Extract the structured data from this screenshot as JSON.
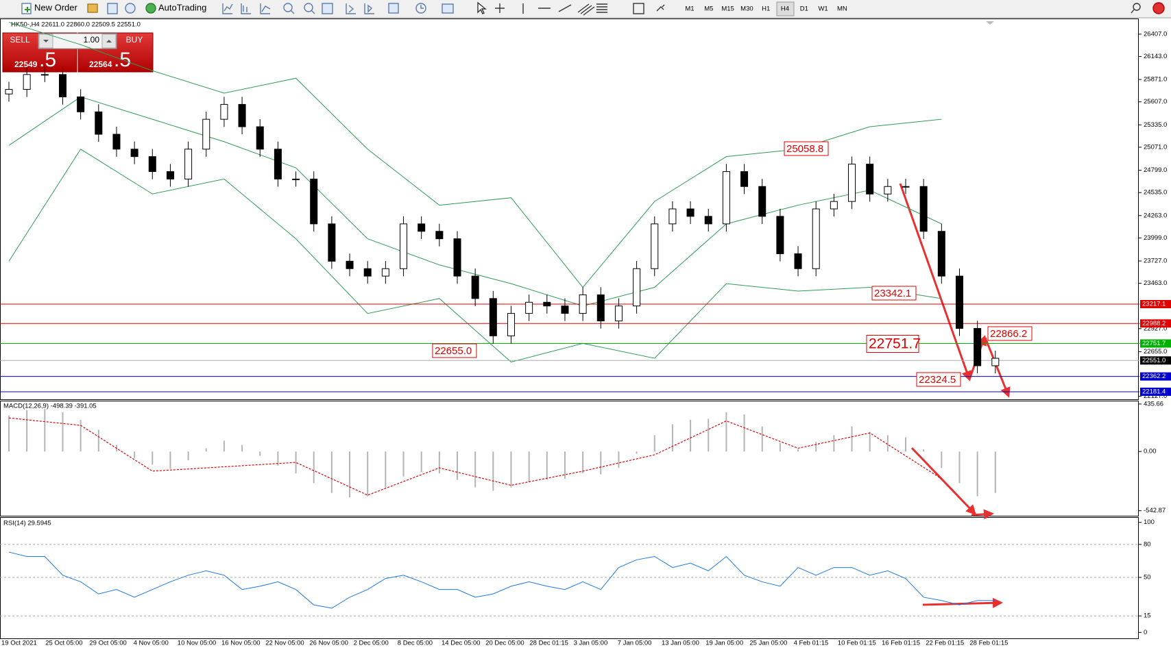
{
  "toolbar": {
    "new_order": "New Order",
    "autotrading": "AutoTrading",
    "timeframes": [
      "M1",
      "M5",
      "M15",
      "M30",
      "H1",
      "H4",
      "D1",
      "W1",
      "MN"
    ],
    "active": "H4"
  },
  "header": "HK50-,H4  22611.0 22860.0 22509.5 22551.0",
  "trade_panel": {
    "sell": "SELL",
    "buy": "BUY",
    "lot": "1.00",
    "sell_main": "22549",
    "sell_pips": ".5",
    "buy_main": "22564",
    "buy_pips": ".5"
  },
  "time_axis_labels": [
    "19 Oct 2021",
    "25 Oct 05:00",
    "29 Oct 05:00",
    "4 Nov 05:00",
    "10 Nov 05:00",
    "16 Nov 05:00",
    "22 Nov 05:00",
    "26 Nov 05:00",
    "2 Dec 05:00",
    "8 Dec 05:00",
    "14 Dec 05:00",
    "20 Dec 05:00",
    "28 Dec 01:15",
    "3 Jan 05:00",
    "7 Jan 05:00",
    "13 Jan 05:00",
    "19 Jan 05:00",
    "25 Jan 05:00",
    "4 Feb 01:15",
    "10 Feb 01:15",
    "16 Feb 01:15",
    "22 Feb 01:15",
    "28 Feb 01:15"
  ],
  "chart_data": [
    {
      "type": "candlestick",
      "ylim": [
        22092,
        26592
      ],
      "yticks": [
        {
          "value": 26407,
          "label": "26407.0"
        },
        {
          "value": 26143,
          "label": "26143.0"
        },
        {
          "value": 25871,
          "label": "25871.0"
        },
        {
          "value": 25607,
          "label": "25607.0"
        },
        {
          "value": 25335,
          "label": "25335.0"
        },
        {
          "value": 25071,
          "label": "25071.0"
        },
        {
          "value": 24799,
          "label": "24799.0"
        },
        {
          "value": 24535,
          "label": "24535.0"
        },
        {
          "value": 24263,
          "label": "24263.0"
        },
        {
          "value": 23999,
          "label": "23999.0"
        },
        {
          "value": 23727,
          "label": "23727.0"
        },
        {
          "value": 23463,
          "label": "23463.0"
        },
        {
          "value": 22927,
          "label": "22927.0"
        },
        {
          "value": 22655,
          "label": "22655.0"
        },
        {
          "value": 22127,
          "label": "22127.0"
        }
      ],
      "open": [
        25700,
        25754,
        25930,
        25930,
        25666,
        25489,
        25224,
        25048,
        24960,
        24783,
        24695,
        25048,
        25401,
        25577,
        25313,
        25048,
        24695,
        24695,
        24165,
        23724,
        23636,
        23548,
        23636,
        24165,
        24077,
        23989,
        23548,
        23283,
        22842,
        23107,
        23239,
        23195,
        23107,
        23327,
        23018,
        23195,
        23636,
        24165,
        24342,
        24254,
        24165,
        24783,
        24607,
        24254,
        23812,
        23636,
        24342,
        24430,
        24871,
        24518,
        24607,
        24607,
        24077,
        23548,
        22930,
        22489
      ],
      "high": [
        25844,
        26020,
        26020,
        26020,
        25756,
        25579,
        25314,
        25138,
        25050,
        24873,
        25138,
        25491,
        25667,
        25667,
        25403,
        25138,
        24785,
        24785,
        24255,
        23814,
        23726,
        23726,
        24255,
        24255,
        24167,
        24079,
        23638,
        23373,
        23197,
        23329,
        23329,
        23285,
        23417,
        23417,
        23285,
        23726,
        24255,
        24432,
        24432,
        24344,
        24873,
        24873,
        24697,
        24344,
        23902,
        24432,
        24520,
        24961,
        24961,
        24697,
        24697,
        24697,
        24167,
        23638,
        23020,
        22667
      ],
      "low": [
        25610,
        25664,
        25840,
        25576,
        25399,
        25134,
        24958,
        24870,
        24693,
        24605,
        24605,
        24958,
        25311,
        25223,
        24958,
        24605,
        24605,
        24075,
        23634,
        23546,
        23458,
        23458,
        23546,
        23987,
        23899,
        23458,
        23193,
        22752,
        22752,
        23017,
        23105,
        23017,
        23017,
        22928,
        22928,
        23105,
        23546,
        24075,
        24164,
        24075,
        24075,
        24517,
        24164,
        23722,
        23546,
        23546,
        24252,
        24340,
        24428,
        24428,
        24517,
        23987,
        23458,
        22840,
        22399,
        22399
      ],
      "close": [
        25754,
        25930,
        25930,
        25666,
        25489,
        25224,
        25048,
        24960,
        24783,
        24695,
        25048,
        25401,
        25577,
        25313,
        25048,
        24695,
        24695,
        24165,
        23724,
        23636,
        23548,
        23636,
        24165,
        24077,
        23989,
        23548,
        23283,
        22842,
        23107,
        23239,
        23195,
        23107,
        23327,
        23018,
        23195,
        23636,
        24165,
        24342,
        24254,
        24165,
        24783,
        24607,
        24254,
        23812,
        23636,
        24342,
        24430,
        24871,
        24518,
        24607,
        24607,
        24077,
        23548,
        22930,
        22489,
        22577
      ],
      "band_color": "#2f9a55",
      "bands": [
        [
          26548,
          26283,
          25975,
          25710,
          25886,
          25048,
          24386,
          24474,
          23415,
          24430,
          24960,
          25048,
          25313,
          25401
        ],
        [
          25092,
          25666,
          25401,
          25136,
          24827,
          23989,
          23680,
          23459,
          23195,
          23415,
          24165,
          24386,
          24563,
          24165
        ],
        [
          23724,
          25048,
          24519,
          24695,
          23989,
          23106,
          23283,
          22533,
          22753,
          22577,
          23459,
          23371,
          23415,
          23283
        ]
      ],
      "hlines": [
        {
          "value": 23217.1,
          "label": "23217.1",
          "color": "#e00000"
        },
        {
          "value": 22988.2,
          "label": "22988.2",
          "color": "#e00000"
        },
        {
          "value": 22751.7,
          "label": "22751.7",
          "color": "#00b000"
        },
        {
          "value": 22551,
          "label": "22551.0",
          "color": "#000000"
        },
        {
          "value": 22362.2,
          "label": "22362.2",
          "color": "#0000cc"
        },
        {
          "value": 22181.4,
          "label": "22181.4",
          "color": "#0000cc"
        }
      ],
      "annotations": [
        "25058.8",
        "23342.1",
        "22751.7",
        "22866.2",
        "22324.5",
        "22655.0"
      ]
    },
    {
      "type": "bar",
      "title": "MACD(12,26,9) -498.39 -391.05",
      "ylim": [
        -589,
        466
      ],
      "yticks": [
        {
          "value": 435.66,
          "label": "435.66"
        },
        {
          "value": 0,
          "label": "0.00"
        },
        {
          "value": -542.87,
          "label": "-542.87"
        }
      ],
      "values": [
        330,
        380,
        390,
        360,
        290,
        200,
        60,
        -60,
        -120,
        -160,
        -80,
        30,
        100,
        60,
        -40,
        -130,
        -200,
        -290,
        -380,
        -420,
        -410,
        -330,
        -230,
        -190,
        -200,
        -260,
        -330,
        -360,
        -330,
        -280,
        -260,
        -250,
        -200,
        -210,
        -150,
        -20,
        150,
        250,
        290,
        300,
        360,
        340,
        230,
        80,
        20,
        90,
        150,
        230,
        180,
        150,
        130,
        20,
        -150,
        -290,
        -410,
        -380
      ],
      "color": "#b4b4b4",
      "signal": [
        308,
        240,
        -180,
        -140,
        -100,
        -400,
        -150,
        -310,
        -180,
        -30,
        280,
        30,
        170,
        -250
      ],
      "signal_color": "#e00000"
    },
    {
      "type": "line",
      "title": "RSI(14) 29.5945",
      "ylim": [
        -5.4,
        104.8
      ],
      "yticks": [
        100,
        80,
        50,
        15,
        0
      ],
      "levels": [
        80,
        50,
        15
      ],
      "values": [
        73,
        69,
        69,
        52,
        46,
        35,
        39,
        32,
        39,
        46,
        52,
        56,
        52,
        39,
        42,
        46,
        39,
        25,
        22,
        32,
        39,
        49,
        52,
        46,
        39,
        39,
        32,
        35,
        42,
        46,
        42,
        39,
        46,
        39,
        59,
        66,
        69,
        59,
        63,
        56,
        69,
        52,
        46,
        42,
        59,
        52,
        59,
        59,
        52,
        56,
        49,
        32,
        29,
        25,
        29,
        29
      ],
      "color": "#1e78e0"
    }
  ]
}
